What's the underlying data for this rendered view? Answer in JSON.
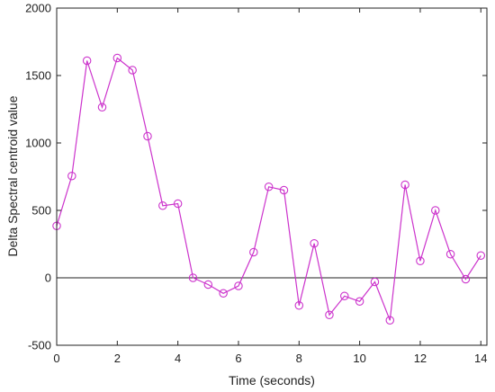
{
  "chart_data": {
    "type": "line",
    "title": "",
    "xlabel": "Time (seconds)",
    "ylabel": "Delta Spectral centroid value",
    "xlim": [
      0,
      14.2
    ],
    "ylim": [
      -500,
      2000
    ],
    "xticks": [
      0,
      2,
      4,
      6,
      8,
      10,
      12,
      14
    ],
    "yticks": [
      -500,
      0,
      500,
      1000,
      1500,
      2000
    ],
    "xtick_labels": [
      "0",
      "2",
      "4",
      "6",
      "8",
      "10",
      "12",
      "14"
    ],
    "ytick_labels": [
      "-500",
      "0",
      "500",
      "1000",
      "1500",
      "2000"
    ],
    "grid": false,
    "reference_line": 0,
    "series": [
      {
        "color": "#cc33cc",
        "marker": "circle",
        "x": [
          0,
          0.5,
          1.0,
          1.5,
          2.0,
          2.5,
          3.0,
          3.5,
          4.0,
          4.5,
          5.0,
          5.5,
          6.0,
          6.5,
          7.0,
          7.5,
          8.0,
          8.5,
          9.0,
          9.5,
          10.0,
          10.5,
          11.0,
          11.5,
          12.0,
          12.5,
          13.0,
          13.5,
          14.0
        ],
        "y": [
          385,
          755,
          1610,
          1265,
          1630,
          1540,
          1050,
          535,
          550,
          0,
          -50,
          -115,
          -60,
          190,
          675,
          650,
          -205,
          255,
          -275,
          -135,
          -175,
          -30,
          -315,
          690,
          125,
          500,
          175,
          -10,
          165
        ]
      }
    ]
  }
}
